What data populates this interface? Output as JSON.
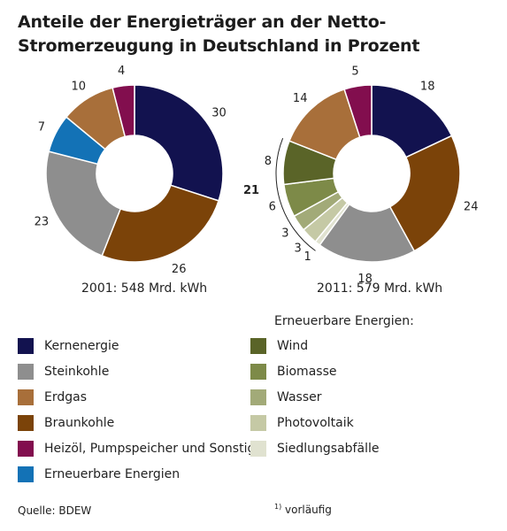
{
  "title": "Anteile der Energieträger an der Netto-Stromerzeugung in Deutschland in Prozent",
  "colors": {
    "kernenergie": "#12124f",
    "steinkohle": "#8e8e8e",
    "erdgas": "#a86f3a",
    "braunkohle": "#7b4309",
    "heizoel": "#820e4e",
    "erneuerbare": "#1372b6",
    "wind": "#5a6428",
    "biomasse": "#7d8a48",
    "wasser": "#a2aa78",
    "photovoltaik": "#c5c9a5",
    "siedlungsabfaelle": "#e0e2d0"
  },
  "chart_data": [
    {
      "type": "donut",
      "caption": "2001: 548 Mrd. kWh",
      "slices": [
        {
          "key": "kernenergie",
          "label": "30",
          "value": 30
        },
        {
          "key": "braunkohle",
          "label": "26",
          "value": 26
        },
        {
          "key": "steinkohle",
          "label": "23",
          "value": 23
        },
        {
          "key": "erneuerbare",
          "label": "7",
          "value": 7
        },
        {
          "key": "erdgas",
          "label": "10",
          "value": 10
        },
        {
          "key": "heizoel",
          "label": "4",
          "value": 4
        }
      ]
    },
    {
      "type": "donut",
      "caption": "2011: 579 Mrd. kWh",
      "renewables_total_label": "21",
      "slices": [
        {
          "key": "kernenergie",
          "label": "18",
          "value": 18
        },
        {
          "key": "braunkohle",
          "label": "24",
          "value": 24
        },
        {
          "key": "steinkohle",
          "label": "18",
          "value": 18
        },
        {
          "key": "siedlungsabfaelle",
          "label": "1",
          "value": 1
        },
        {
          "key": "photovoltaik",
          "label": "3",
          "value": 3
        },
        {
          "key": "wasser",
          "label": "3",
          "value": 3
        },
        {
          "key": "biomasse",
          "label": "6",
          "value": 6
        },
        {
          "key": "wind",
          "label": "8",
          "value": 8
        },
        {
          "key": "erdgas",
          "label": "14",
          "value": 14
        },
        {
          "key": "heizoel",
          "label": "5",
          "value": 5
        }
      ]
    }
  ],
  "legend_left": [
    {
      "key": "kernenergie",
      "label": "Kernenergie"
    },
    {
      "key": "steinkohle",
      "label": "Steinkohle"
    },
    {
      "key": "erdgas",
      "label": "Erdgas"
    },
    {
      "key": "braunkohle",
      "label": "Braunkohle"
    },
    {
      "key": "heizoel",
      "label": "Heizöl, Pumpspeicher und Sonstige"
    },
    {
      "key": "erneuerbare",
      "label": "Erneuerbare Energien"
    }
  ],
  "legend_right_heading": "Erneuerbare Energien:",
  "legend_right": [
    {
      "key": "wind",
      "label": "Wind"
    },
    {
      "key": "biomasse",
      "label": "Biomasse"
    },
    {
      "key": "wasser",
      "label": "Wasser"
    },
    {
      "key": "photovoltaik",
      "label": "Photovoltaik"
    },
    {
      "key": "siedlungsabfaelle",
      "label": "Siedlungsabfälle"
    }
  ],
  "source": "Quelle: BDEW",
  "footnote_mark": "1)",
  "footnote": "vorläufig"
}
